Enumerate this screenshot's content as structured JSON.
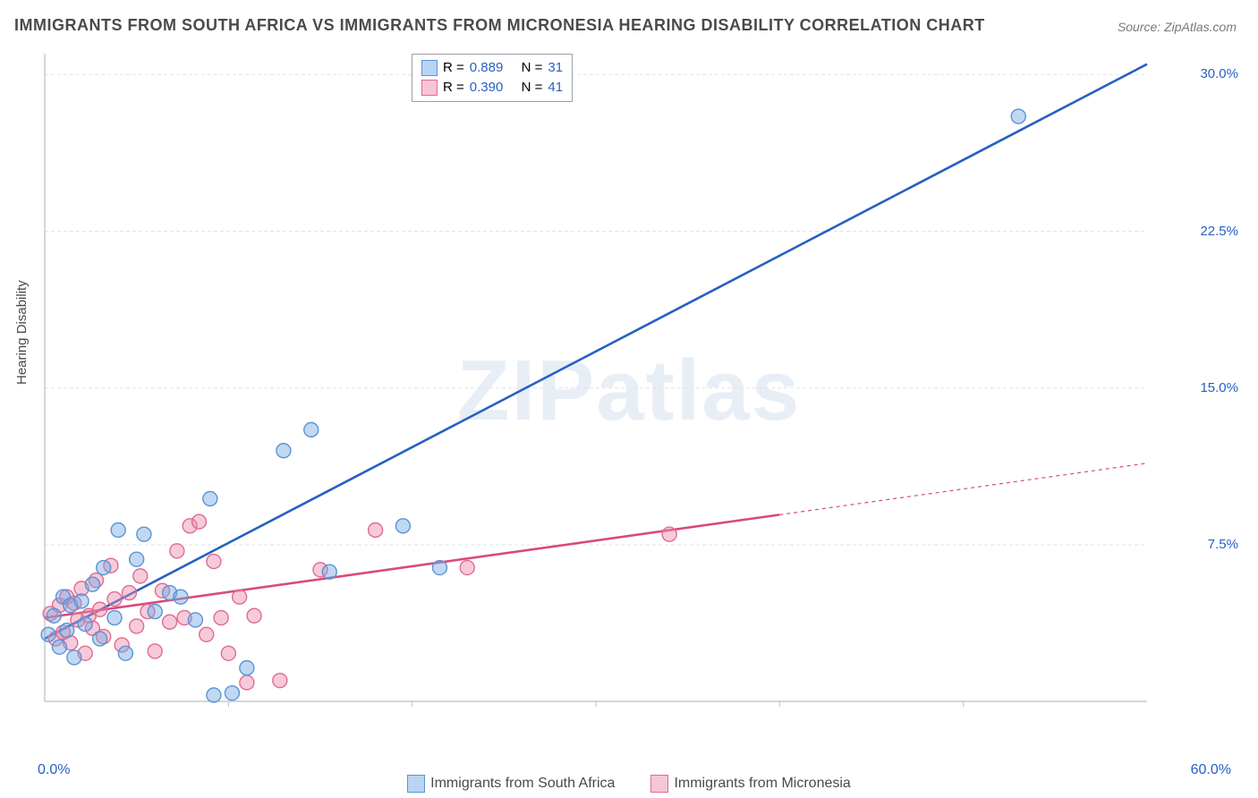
{
  "title": "IMMIGRANTS FROM SOUTH AFRICA VS IMMIGRANTS FROM MICRONESIA HEARING DISABILITY CORRELATION CHART",
  "source": "Source: ZipAtlas.com",
  "y_axis_label": "Hearing Disability",
  "watermark": "ZIPatlas",
  "chart": {
    "type": "scatter+regression",
    "x_min": 0.0,
    "x_max": 60.0,
    "y_min": 0.0,
    "y_max": 31.0,
    "x_ticks_every": 10.0,
    "y_ticks": [
      7.5,
      15.0,
      22.5,
      30.0
    ],
    "y_tick_labels": [
      "7.5%",
      "15.0%",
      "22.5%",
      "30.0%"
    ],
    "x_label_start": "0.0%",
    "x_label_end": "60.0%",
    "grid_color": "#e2e4e8",
    "axis_color": "#b9bec6",
    "background": "#ffffff",
    "marker_radius": 8,
    "marker_stroke_width": 1.4,
    "line_width": 2.6
  },
  "series": [
    {
      "key": "south_africa",
      "label": "Immigrants from South Africa",
      "color_fill": "rgba(118,168,228,0.45)",
      "color_stroke": "#5a93d6",
      "swatch_fill": "#b9d4f2",
      "swatch_border": "#5a93d6",
      "line_color": "#2660c4",
      "R": "0.889",
      "N": "31",
      "reg_line": {
        "x0": 0,
        "y0": 3.0,
        "x1": 60,
        "y1": 30.5,
        "solid_until_x": 60
      },
      "points": [
        [
          0.2,
          3.2
        ],
        [
          0.5,
          4.1
        ],
        [
          0.8,
          2.6
        ],
        [
          1.0,
          5.0
        ],
        [
          1.2,
          3.4
        ],
        [
          1.4,
          4.6
        ],
        [
          1.6,
          2.1
        ],
        [
          2.0,
          4.8
        ],
        [
          2.2,
          3.7
        ],
        [
          2.6,
          5.6
        ],
        [
          3.0,
          3.0
        ],
        [
          3.2,
          6.4
        ],
        [
          3.8,
          4.0
        ],
        [
          4.0,
          8.2
        ],
        [
          4.4,
          2.3
        ],
        [
          5.0,
          6.8
        ],
        [
          5.4,
          8.0
        ],
        [
          6.0,
          4.3
        ],
        [
          6.8,
          5.2
        ],
        [
          7.4,
          5.0
        ],
        [
          8.2,
          3.9
        ],
        [
          9.0,
          9.7
        ],
        [
          9.2,
          0.3
        ],
        [
          10.2,
          0.4
        ],
        [
          11.0,
          1.6
        ],
        [
          13.0,
          12.0
        ],
        [
          14.5,
          13.0
        ],
        [
          15.5,
          6.2
        ],
        [
          19.5,
          8.4
        ],
        [
          21.5,
          6.4
        ],
        [
          53.0,
          28.0
        ]
      ]
    },
    {
      "key": "micronesia",
      "label": "Immigrants from Micronesia",
      "color_fill": "rgba(236,140,170,0.45)",
      "color_stroke": "#e06a92",
      "swatch_fill": "#f6c6d6",
      "swatch_border": "#e06a92",
      "line_color": "#d94a78",
      "R": "0.390",
      "N": "41",
      "reg_line": {
        "x0": 0,
        "y0": 4.0,
        "x1": 60,
        "y1": 11.4,
        "solid_until_x": 40
      },
      "points": [
        [
          0.3,
          4.2
        ],
        [
          0.6,
          3.0
        ],
        [
          0.8,
          4.6
        ],
        [
          1.0,
          3.3
        ],
        [
          1.2,
          5.0
        ],
        [
          1.4,
          2.8
        ],
        [
          1.6,
          4.7
        ],
        [
          1.8,
          3.9
        ],
        [
          2.0,
          5.4
        ],
        [
          2.2,
          2.3
        ],
        [
          2.4,
          4.1
        ],
        [
          2.6,
          3.5
        ],
        [
          2.8,
          5.8
        ],
        [
          3.0,
          4.4
        ],
        [
          3.2,
          3.1
        ],
        [
          3.6,
          6.5
        ],
        [
          3.8,
          4.9
        ],
        [
          4.2,
          2.7
        ],
        [
          4.6,
          5.2
        ],
        [
          5.0,
          3.6
        ],
        [
          5.2,
          6.0
        ],
        [
          5.6,
          4.3
        ],
        [
          6.0,
          2.4
        ],
        [
          6.4,
          5.3
        ],
        [
          6.8,
          3.8
        ],
        [
          7.2,
          7.2
        ],
        [
          7.6,
          4.0
        ],
        [
          7.9,
          8.4
        ],
        [
          8.4,
          8.6
        ],
        [
          8.8,
          3.2
        ],
        [
          9.2,
          6.7
        ],
        [
          9.6,
          4.0
        ],
        [
          10.0,
          2.3
        ],
        [
          10.6,
          5.0
        ],
        [
          11.0,
          0.9
        ],
        [
          11.4,
          4.1
        ],
        [
          12.8,
          1.0
        ],
        [
          15.0,
          6.3
        ],
        [
          18.0,
          8.2
        ],
        [
          23.0,
          6.4
        ],
        [
          34.0,
          8.0
        ]
      ]
    }
  ],
  "legend_box": {
    "r_prefix": "R =",
    "n_prefix": "N ="
  },
  "colors": {
    "text_main": "#4a4a4a",
    "text_num": "#2660c4"
  }
}
